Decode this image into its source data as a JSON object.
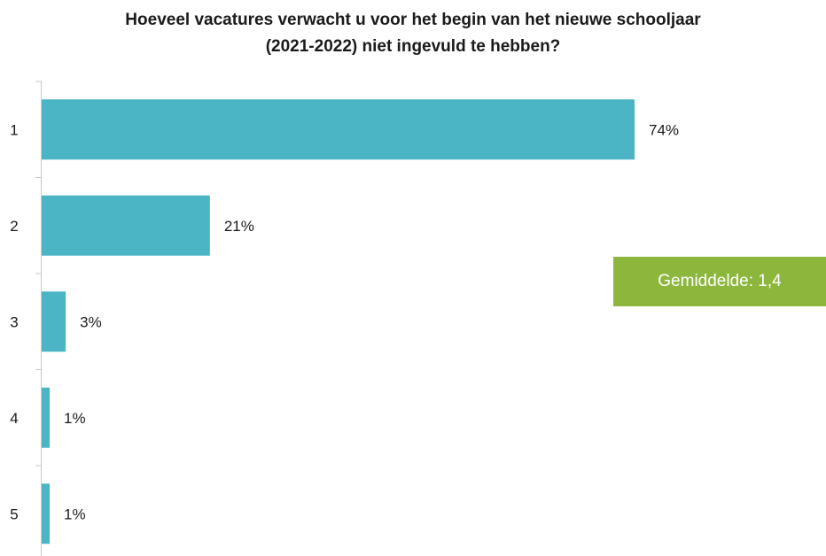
{
  "chart_data": {
    "type": "bar",
    "orientation": "horizontal",
    "title_lines": [
      "Hoeveel vacatures verwacht u voor het begin van het nieuwe schooljaar",
      "(2021-2022) niet ingevuld te hebben?"
    ],
    "categories": [
      "1",
      "2",
      "3",
      "4",
      "5"
    ],
    "values": [
      74,
      21,
      3,
      1,
      1
    ],
    "value_labels": [
      "74%",
      "21%",
      "3%",
      "1%",
      "1%"
    ],
    "unit": "%",
    "xlim": [
      0,
      100
    ],
    "grid": false,
    "legend": "none",
    "colors": {
      "bar": "#4bb5c5",
      "axis": "#c8c8c8",
      "badge": "#8db63c",
      "badge_text": "#ffffff"
    }
  },
  "annotation": {
    "average_label": "Gemiddelde: 1,4"
  }
}
